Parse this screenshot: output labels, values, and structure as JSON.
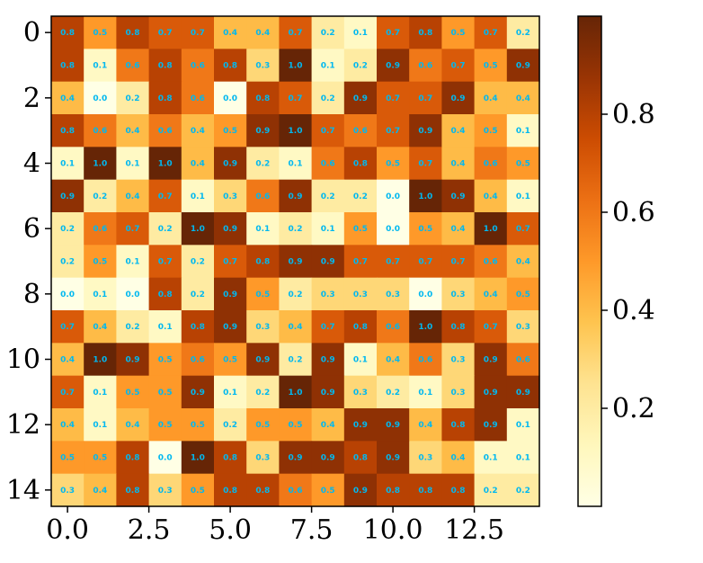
{
  "chart_data": {
    "type": "heatmap",
    "title": "",
    "xlabel": "",
    "ylabel": "",
    "colormap": "YlOrBr",
    "annotation_color": "#00b8f0",
    "x_ticks": [
      "0.0",
      "2.5",
      "5.0",
      "7.5",
      "10.0",
      "12.5"
    ],
    "x_tick_values": [
      0,
      2.5,
      5,
      7.5,
      10,
      12.5
    ],
    "y_ticks": [
      "0",
      "2",
      "4",
      "6",
      "8",
      "10",
      "12",
      "14"
    ],
    "y_tick_values": [
      0,
      2,
      4,
      6,
      8,
      10,
      12,
      14
    ],
    "colorbar": {
      "ticks": [
        "0.2",
        "0.4",
        "0.6",
        "0.8"
      ],
      "tick_values": [
        0.2,
        0.4,
        0.6,
        0.8
      ],
      "range": [
        0.0,
        1.0
      ]
    },
    "values": [
      [
        0.8,
        0.5,
        0.8,
        0.7,
        0.7,
        0.4,
        0.4,
        0.7,
        0.2,
        0.1,
        0.7,
        0.8,
        0.5,
        0.7,
        0.2
      ],
      [
        0.8,
        0.1,
        0.6,
        0.8,
        0.6,
        0.8,
        0.3,
        1.0,
        0.1,
        0.2,
        0.9,
        0.6,
        0.7,
        0.5,
        0.9
      ],
      [
        0.4,
        0.0,
        0.2,
        0.8,
        0.6,
        0.0,
        0.8,
        0.7,
        0.2,
        0.9,
        0.7,
        0.7,
        0.9,
        0.4,
        0.4
      ],
      [
        0.8,
        0.6,
        0.4,
        0.6,
        0.4,
        0.5,
        0.9,
        1.0,
        0.7,
        0.6,
        0.7,
        0.9,
        0.4,
        0.5,
        0.1
      ],
      [
        0.1,
        1.0,
        0.1,
        1.0,
        0.4,
        0.9,
        0.2,
        0.1,
        0.6,
        0.8,
        0.5,
        0.7,
        0.4,
        0.6,
        0.5
      ],
      [
        0.9,
        0.2,
        0.4,
        0.7,
        0.1,
        0.3,
        0.6,
        0.9,
        0.2,
        0.2,
        0.0,
        1.0,
        0.9,
        0.4,
        0.1
      ],
      [
        0.2,
        0.6,
        0.7,
        0.2,
        1.0,
        0.9,
        0.1,
        0.2,
        0.1,
        0.5,
        0.0,
        0.5,
        0.4,
        1.0,
        0.7
      ],
      [
        0.2,
        0.5,
        0.1,
        0.7,
        0.2,
        0.7,
        0.8,
        0.9,
        0.9,
        0.7,
        0.7,
        0.7,
        0.7,
        0.6,
        0.4
      ],
      [
        0.0,
        0.1,
        0.0,
        0.8,
        0.2,
        0.9,
        0.5,
        0.2,
        0.3,
        0.3,
        0.3,
        0.0,
        0.3,
        0.4,
        0.5
      ],
      [
        0.7,
        0.4,
        0.2,
        0.1,
        0.8,
        0.9,
        0.3,
        0.4,
        0.7,
        0.8,
        0.6,
        1.0,
        0.8,
        0.7,
        0.3
      ],
      [
        0.4,
        1.0,
        0.9,
        0.5,
        0.6,
        0.5,
        0.9,
        0.2,
        0.9,
        0.1,
        0.4,
        0.6,
        0.3,
        0.9,
        0.6
      ],
      [
        0.7,
        0.1,
        0.5,
        0.5,
        0.9,
        0.1,
        0.2,
        1.0,
        0.9,
        0.3,
        0.2,
        0.1,
        0.3,
        0.9,
        0.9
      ],
      [
        0.4,
        0.1,
        0.4,
        0.5,
        0.5,
        0.2,
        0.5,
        0.5,
        0.4,
        0.9,
        0.9,
        0.4,
        0.8,
        0.9,
        0.1
      ],
      [
        0.5,
        0.5,
        0.8,
        0.0,
        1.0,
        0.8,
        0.3,
        0.9,
        0.9,
        0.8,
        0.9,
        0.3,
        0.4,
        0.1,
        0.1
      ],
      [
        0.3,
        0.4,
        0.8,
        0.3,
        0.5,
        0.8,
        0.8,
        0.6,
        0.5,
        0.9,
        0.8,
        0.8,
        0.8,
        0.2,
        0.2
      ]
    ]
  }
}
